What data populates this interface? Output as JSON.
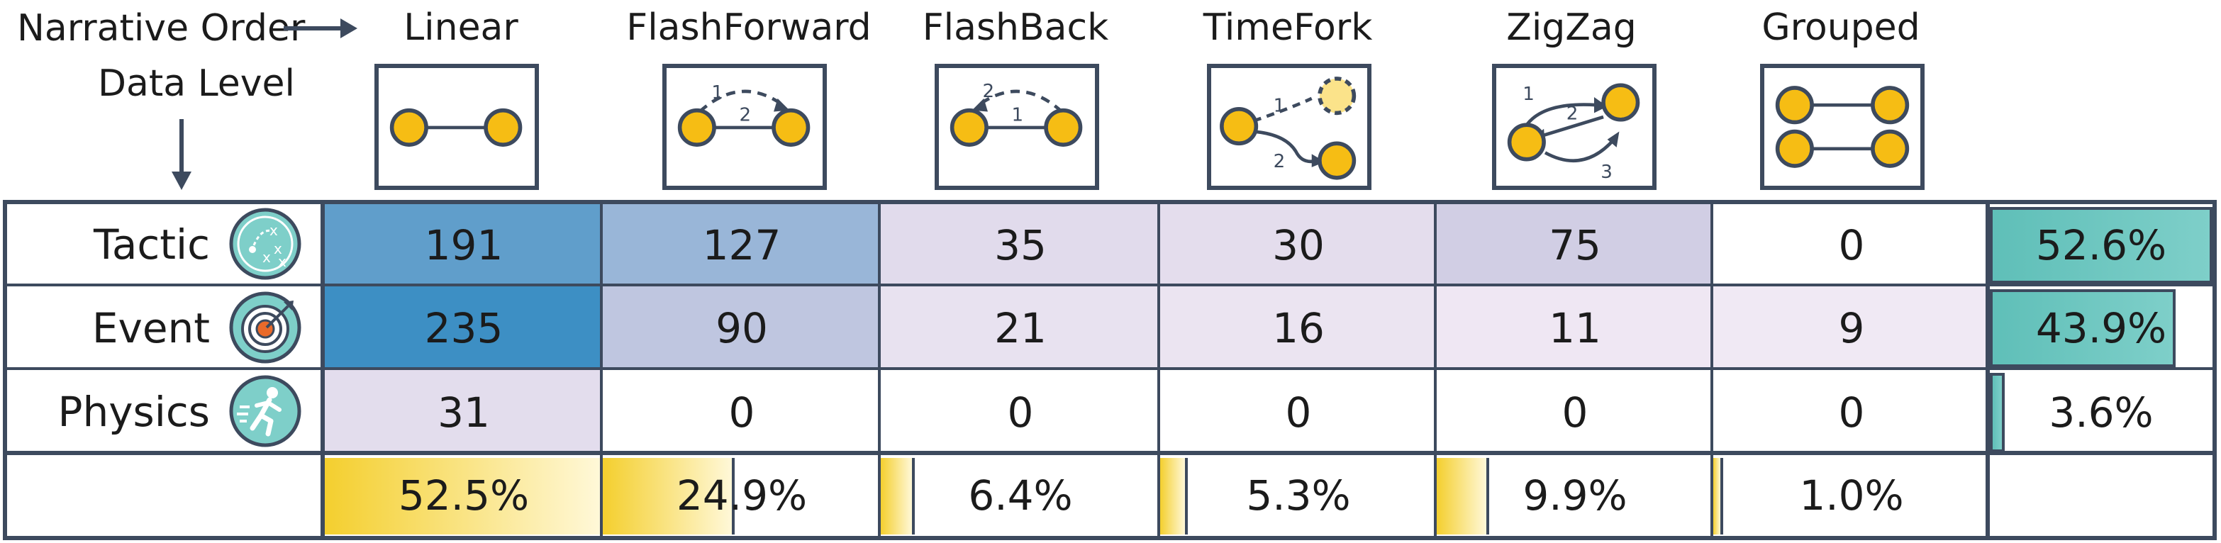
{
  "header": {
    "narrative_order_label": "Narrative Order",
    "data_level_label": "Data Level"
  },
  "columns": [
    {
      "name": "Linear",
      "icon": "linear-flow-icon"
    },
    {
      "name": "FlashForward",
      "icon": "flashforward-flow-icon",
      "step_labels": [
        "1",
        "2"
      ]
    },
    {
      "name": "FlashBack",
      "icon": "flashback-flow-icon",
      "step_labels": [
        "2",
        "1"
      ]
    },
    {
      "name": "TimeFork",
      "icon": "timefork-flow-icon",
      "step_labels": [
        "1",
        "2"
      ]
    },
    {
      "name": "ZigZag",
      "icon": "zigzag-flow-icon",
      "step_labels": [
        "1",
        "2",
        "3"
      ]
    },
    {
      "name": "Grouped",
      "icon": "grouped-flow-icon"
    }
  ],
  "rows": [
    {
      "name": "Tactic",
      "icon": "tactic-board-icon",
      "values": [
        "191",
        "127",
        "35",
        "30",
        "75",
        "0"
      ],
      "share": "52.6%",
      "share_value": 52.6
    },
    {
      "name": "Event",
      "icon": "target-icon",
      "values": [
        "235",
        "90",
        "21",
        "16",
        "11",
        "9"
      ],
      "share": "43.9%",
      "share_value": 43.9
    },
    {
      "name": "Physics",
      "icon": "running-figure-icon",
      "values": [
        "31",
        "0",
        "0",
        "0",
        "0",
        "0"
      ],
      "share": "3.6%",
      "share_value": 3.6
    }
  ],
  "column_shares": [
    {
      "label": "52.5%",
      "value": 52.5
    },
    {
      "label": "24.9%",
      "value": 24.9
    },
    {
      "label": "6.4%",
      "value": 6.4
    },
    {
      "label": "5.3%",
      "value": 5.3
    },
    {
      "label": "9.9%",
      "value": 9.9
    },
    {
      "label": "1.0%",
      "value": 1.0
    }
  ],
  "colors": {
    "node_fill": "#f6bd14",
    "node_stroke": "#3d4a5e",
    "cell_max": "#3d8fc4",
    "cell_min": "#fcf3fa",
    "row_share_bar": "#7ecfc9",
    "col_share_bar": "#f4cf2e"
  }
}
